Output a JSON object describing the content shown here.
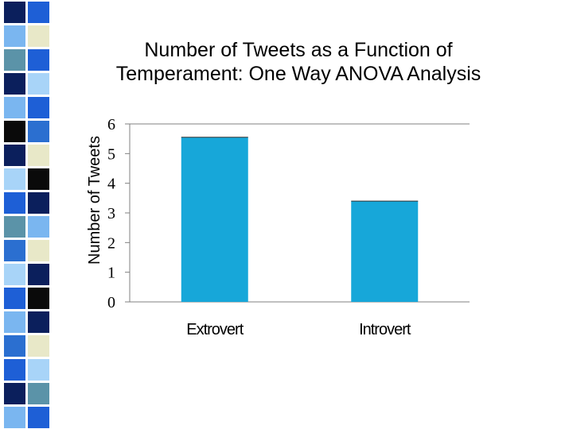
{
  "slide": {
    "title_line1": "Number of Tweets as a Function of",
    "title_line2": "Temperament: One Way ANOVA Analysis"
  },
  "decoration": {
    "strip_colors": [
      "#0b1f5c",
      "#1e5fd6",
      "#7ab6f0",
      "#e8e8c8",
      "#5b93a8",
      "#0a0a0a",
      "#a8d4f8",
      "#2b6fd0"
    ]
  },
  "chart_data": {
    "type": "bar",
    "title": "Number of Tweets as a Function of Temperament: One Way ANOVA Analysis",
    "categories": [
      "Extrovert",
      "Introvert"
    ],
    "values": [
      5.55,
      3.4
    ],
    "ylabel": "Number of Tweets",
    "xlabel": "",
    "ylim": [
      0,
      6
    ],
    "yticks": [
      "0",
      "1",
      "2",
      "3",
      "4",
      "5",
      "6"
    ],
    "bar_color": "#17a7d9",
    "grid": false,
    "legend": "none"
  }
}
